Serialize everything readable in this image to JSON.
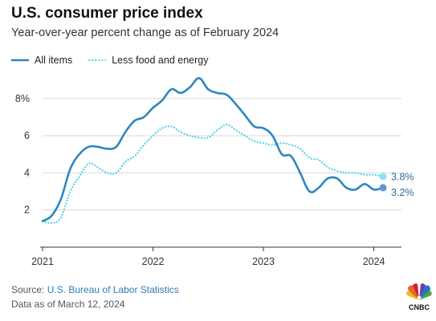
{
  "header": {
    "title": "U.S. consumer price index",
    "subtitle": "Year-over-year percent change as of February 2024"
  },
  "legend": {
    "items": [
      {
        "label": "All items",
        "style": "solid"
      },
      {
        "label": "Less food and energy",
        "style": "dotted"
      }
    ]
  },
  "footer": {
    "source_prefix": "Source: ",
    "source_name": "U.S. Bureau of Labor Statistics",
    "data_as_of": "Data as of March 12, 2024",
    "logo_text": "CNBC"
  },
  "colors": {
    "all_items": "#2e86c1",
    "core": "#4fd0e6",
    "core_marker": "#8fe3f0",
    "grid": "#d9d9d9",
    "axis_text": "#333333"
  },
  "chart_data": {
    "type": "line",
    "x_ticks": [
      "2021",
      "2022",
      "2023",
      "2024"
    ],
    "y_ticks": [
      "2",
      "4",
      "6",
      "8%"
    ],
    "ylim": [
      0,
      9.2
    ],
    "xlim": [
      2021.0,
      2024.25
    ],
    "grid": "horizontal",
    "series": [
      {
        "name": "All items",
        "end_label": "3.2%",
        "x": [
          2021.0,
          2021.083,
          2021.167,
          2021.25,
          2021.333,
          2021.417,
          2021.5,
          2021.583,
          2021.667,
          2021.75,
          2021.833,
          2021.917,
          2022.0,
          2022.083,
          2022.167,
          2022.25,
          2022.333,
          2022.417,
          2022.5,
          2022.583,
          2022.667,
          2022.75,
          2022.833,
          2022.917,
          2023.0,
          2023.083,
          2023.167,
          2023.25,
          2023.333,
          2023.417,
          2023.5,
          2023.583,
          2023.667,
          2023.75,
          2023.833,
          2023.917,
          2024.0,
          2024.083
        ],
        "values": [
          1.4,
          1.7,
          2.6,
          4.2,
          5.0,
          5.4,
          5.4,
          5.3,
          5.4,
          6.2,
          6.8,
          7.0,
          7.5,
          7.9,
          8.5,
          8.3,
          8.6,
          9.1,
          8.5,
          8.3,
          8.2,
          7.7,
          7.1,
          6.5,
          6.4,
          6.0,
          5.0,
          4.9,
          4.0,
          3.0,
          3.2,
          3.7,
          3.7,
          3.2,
          3.1,
          3.4,
          3.1,
          3.2
        ]
      },
      {
        "name": "Less food and energy",
        "end_label": "3.8%",
        "x": [
          2021.0,
          2021.083,
          2021.167,
          2021.25,
          2021.333,
          2021.417,
          2021.5,
          2021.583,
          2021.667,
          2021.75,
          2021.833,
          2021.917,
          2022.0,
          2022.083,
          2022.167,
          2022.25,
          2022.333,
          2022.417,
          2022.5,
          2022.583,
          2022.667,
          2022.75,
          2022.833,
          2022.917,
          2023.0,
          2023.083,
          2023.167,
          2023.25,
          2023.333,
          2023.417,
          2023.5,
          2023.583,
          2023.667,
          2023.75,
          2023.833,
          2023.917,
          2024.0,
          2024.083
        ],
        "values": [
          1.4,
          1.3,
          1.6,
          3.0,
          3.8,
          4.5,
          4.3,
          4.0,
          4.0,
          4.6,
          4.9,
          5.5,
          6.0,
          6.4,
          6.5,
          6.2,
          6.0,
          5.9,
          5.9,
          6.3,
          6.6,
          6.3,
          6.0,
          5.7,
          5.6,
          5.5,
          5.6,
          5.5,
          5.3,
          4.8,
          4.7,
          4.3,
          4.1,
          4.0,
          4.0,
          3.9,
          3.9,
          3.8
        ]
      }
    ]
  }
}
